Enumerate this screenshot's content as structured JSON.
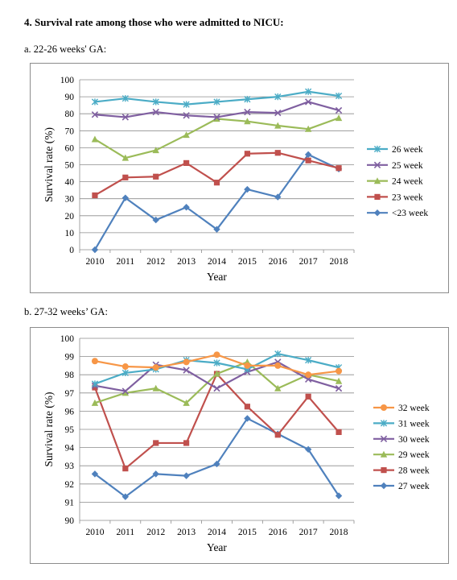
{
  "heading": "4. Survival rate among those who were admitted to NICU:",
  "section_a": "a. 22-26 weeks' GA:",
  "section_b": "b. 27-32 weeks’ GA:",
  "chart_data": [
    {
      "type": "line",
      "title": "",
      "xlabel": "Year",
      "ylabel": "Survival rate (%)",
      "ylim": [
        0,
        100
      ],
      "ystep": 10,
      "grid": true,
      "legend_position": "right",
      "categories": [
        "2010",
        "2011",
        "2012",
        "2013",
        "2014",
        "2015",
        "2016",
        "2017",
        "2018"
      ],
      "series": [
        {
          "name": "26 week",
          "color": "#4bacc6",
          "marker": "star",
          "values": [
            87,
            89,
            87,
            85.5,
            87,
            88.5,
            90,
            93,
            90.5
          ]
        },
        {
          "name": "25 week",
          "color": "#7f5fa0",
          "marker": "x",
          "values": [
            79.5,
            78,
            81,
            79,
            78,
            81,
            80.5,
            87,
            82
          ]
        },
        {
          "name": "24 week",
          "color": "#9bbb59",
          "marker": "triangle",
          "values": [
            65,
            54,
            58.5,
            67.5,
            77,
            75.5,
            73,
            71,
            77.5
          ]
        },
        {
          "name": "23 week",
          "color": "#c0504d",
          "marker": "square",
          "values": [
            32,
            42.5,
            43,
            51,
            39.5,
            56.5,
            57,
            52.5,
            48
          ]
        },
        {
          "name": "<23 week",
          "color": "#4f81bd",
          "marker": "diamond",
          "values": [
            0,
            30.5,
            17.5,
            25,
            12,
            35.5,
            31,
            56,
            47.5
          ]
        }
      ]
    },
    {
      "type": "line",
      "title": "",
      "xlabel": "Year",
      "ylabel": "Survival rate (%)",
      "ylim": [
        90,
        100
      ],
      "ystep": 1,
      "grid": true,
      "legend_position": "right",
      "categories": [
        "2010",
        "2011",
        "2012",
        "2013",
        "2014",
        "2015",
        "2016",
        "2017",
        "2018"
      ],
      "series": [
        {
          "name": "32 week",
          "color": "#f79646",
          "marker": "circle",
          "values": [
            98.75,
            98.45,
            98.4,
            98.7,
            99.1,
            98.5,
            98.5,
            98.0,
            98.2
          ]
        },
        {
          "name": "31 week",
          "color": "#4bacc6",
          "marker": "star",
          "values": [
            97.5,
            98.1,
            98.3,
            98.8,
            98.65,
            98.3,
            99.15,
            98.8,
            98.4
          ]
        },
        {
          "name": "30 week",
          "color": "#7f5fa0",
          "marker": "x",
          "values": [
            97.4,
            97.1,
            98.55,
            98.25,
            97.25,
            98.15,
            98.7,
            97.75,
            97.25
          ]
        },
        {
          "name": "29 week",
          "color": "#9bbb59",
          "marker": "triangle",
          "values": [
            96.45,
            97.0,
            97.25,
            96.45,
            98.05,
            98.7,
            97.25,
            98.0,
            97.65
          ]
        },
        {
          "name": "28 week",
          "color": "#c0504d",
          "marker": "square",
          "values": [
            97.3,
            92.85,
            94.25,
            94.25,
            98.05,
            96.25,
            94.7,
            96.8,
            94.85
          ]
        },
        {
          "name": "27 week",
          "color": "#4f81bd",
          "marker": "diamond",
          "values": [
            92.55,
            91.3,
            92.55,
            92.45,
            93.1,
            95.6,
            94.75,
            93.9,
            91.35
          ]
        }
      ]
    }
  ]
}
